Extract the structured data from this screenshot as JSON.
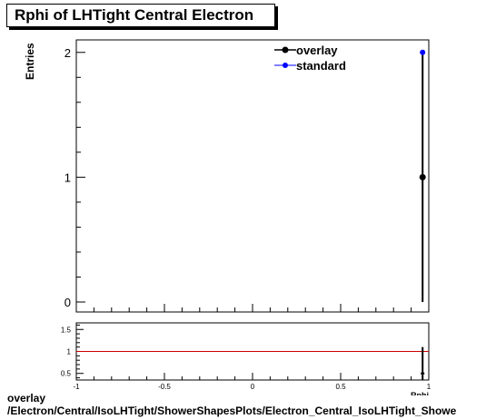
{
  "title": "Rphi of LHTight Central  Electron",
  "ylabel": "Entries",
  "footer": {
    "line1": "overlay",
    "line2": "/Electron/Central/IsoLHTight/ShowerShapesPlots/Electron_Central_IsoLHTight_Showe"
  },
  "colors": {
    "overlay": "#000000",
    "standard": "#0000ff",
    "ratio_line": "#cc0000"
  },
  "chart_data": [
    {
      "type": "scatter",
      "title": "Rphi of LHTight Central  Electron",
      "ylabel": "Entries",
      "xlabel": "Rphi",
      "xlim": [
        -1,
        1
      ],
      "ylim": [
        -0.08,
        2.1
      ],
      "y_ticks": [
        "0",
        "1",
        "2"
      ],
      "legend_position": "top-right",
      "series": [
        {
          "name": "overlay",
          "color": "#000000",
          "x": [
            0.965
          ],
          "y": [
            1
          ],
          "yerr": [
            1
          ]
        },
        {
          "name": "standard",
          "color": "#0000ff",
          "x": [
            0.965
          ],
          "y": [
            2
          ],
          "yerr": [
            0
          ]
        }
      ]
    },
    {
      "type": "line",
      "xlim": [
        -1,
        1
      ],
      "ylim": [
        0.35,
        1.65
      ],
      "x_ticks": [
        "-1",
        "-0.5",
        "0",
        "0.5",
        "1"
      ],
      "y_ticks": [
        "0.5",
        "1",
        "1.5"
      ],
      "reference_line": 1,
      "x": [
        0.965
      ],
      "y": [
        0.5
      ],
      "yerr": [
        0.6
      ]
    }
  ]
}
